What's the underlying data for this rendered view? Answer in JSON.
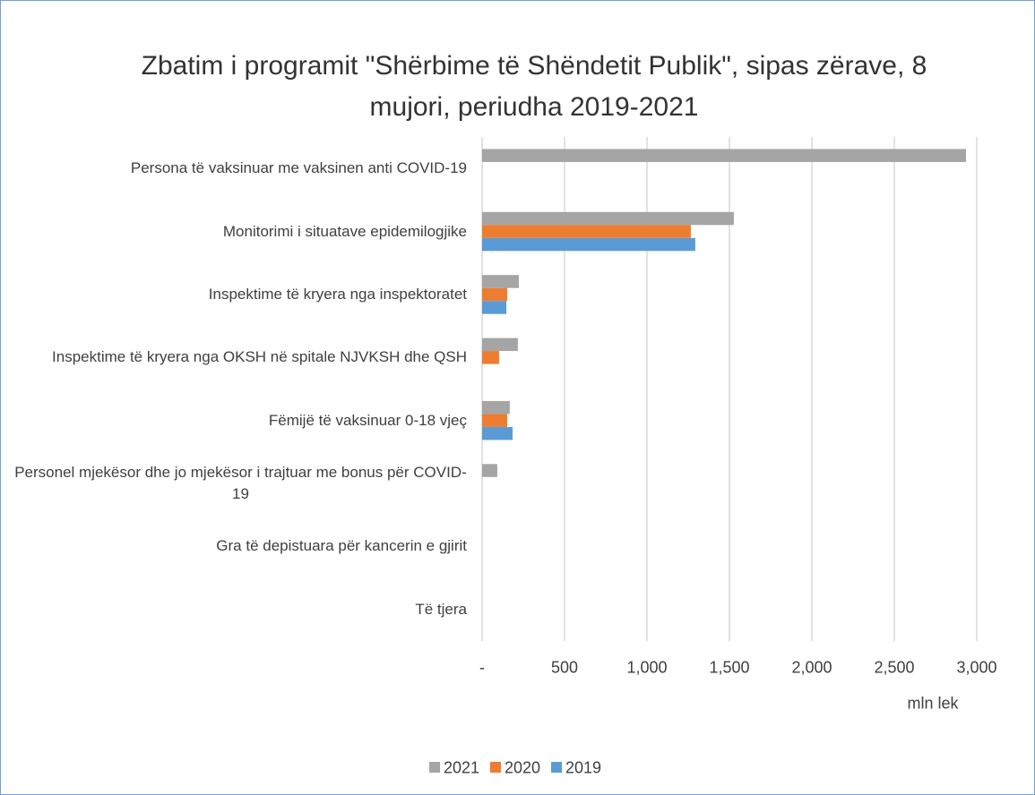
{
  "chart_data": {
    "type": "bar",
    "orientation": "horizontal",
    "title": "Zbatim i programit \"Shërbime të Shëndetit Publik\", sipas zërave, 8 mujori, periudha 2019-2021",
    "categories": [
      "Persona të vaksinuar me vaksinen anti COVID-19",
      "Monitorimi i situatave epidemilogjike",
      "Inspektime të kryera nga inspektoratet",
      "Inspektime të kryera nga OKSH në spitale NJVKSH dhe QSH",
      "Fëmijë të vaksinuar 0-18 vjeç",
      "Personel mjekësor dhe jo mjekësor i trajtuar me bonus për COVID-19",
      "Gra të depistuara për kancerin e gjirit",
      "Të tjera"
    ],
    "series": [
      {
        "name": "2021",
        "color": "#a5a5a5",
        "values": [
          2935,
          1527,
          223,
          217,
          168,
          92,
          null,
          null
        ]
      },
      {
        "name": "2020",
        "color": "#ed7d31",
        "values": [
          null,
          1266,
          152,
          103,
          152,
          null,
          null,
          null
        ]
      },
      {
        "name": "2019",
        "color": "#5b9bd5",
        "values": [
          null,
          1293,
          147,
          null,
          185,
          null,
          null,
          null
        ]
      }
    ],
    "xlim": [
      0,
      3000
    ],
    "xticks": [
      {
        "value": 0,
        "label": "-"
      },
      500,
      {
        "value": 1000,
        "label": "1,000"
      },
      {
        "value": 1500,
        "label": "1,500"
      },
      {
        "value": 2000,
        "label": "2,000"
      },
      {
        "value": 2500,
        "label": "2,500"
      },
      {
        "value": 3000,
        "label": "3,000"
      }
    ],
    "xlabel": "mln lek",
    "grid": true,
    "legend": "bottom"
  }
}
